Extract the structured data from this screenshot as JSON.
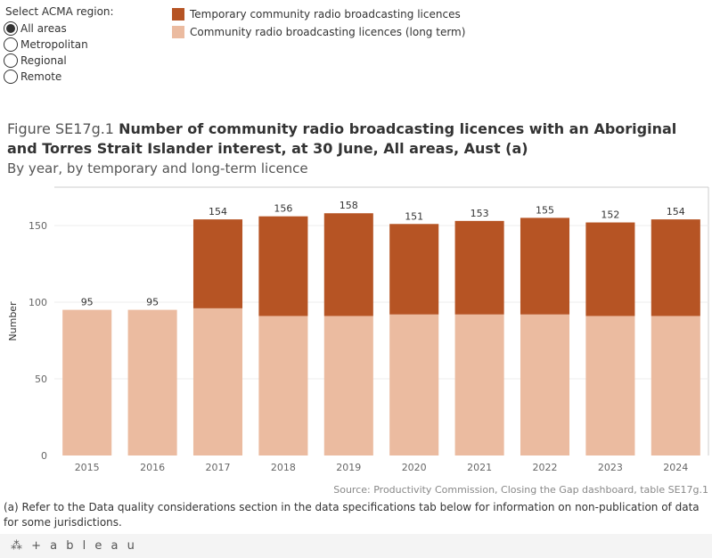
{
  "filter": {
    "title": "Select ACMA region:",
    "options": [
      {
        "label": "All areas",
        "selected": true
      },
      {
        "label": "Metropolitan",
        "selected": false
      },
      {
        "label": "Regional",
        "selected": false
      },
      {
        "label": "Remote",
        "selected": false
      }
    ]
  },
  "legend": {
    "items": [
      {
        "label": "Temporary community radio broadcasting licences",
        "color": "#b65424"
      },
      {
        "label": "Community radio broadcasting licences (long term)",
        "color": "#ebbba0"
      }
    ]
  },
  "figure": {
    "prefix": "Figure SE17g.1",
    "title": "Number of community radio broadcasting licences with an Aboriginal and Torres Strait Islander interest, at 30 June, All areas, Aust (a)",
    "subtitle": "By year, by temporary and long-term licence"
  },
  "chart_data": {
    "type": "bar",
    "stacked": true,
    "categories": [
      "2015",
      "2016",
      "2017",
      "2018",
      "2019",
      "2020",
      "2021",
      "2022",
      "2023",
      "2024"
    ],
    "series": [
      {
        "name": "Community radio broadcasting licences (long term)",
        "color": "#ebbba0",
        "values": [
          95,
          95,
          96,
          91,
          91,
          92,
          92,
          92,
          91,
          91
        ]
      },
      {
        "name": "Temporary community radio broadcasting licences",
        "color": "#b65424",
        "values": [
          0,
          0,
          58,
          65,
          67,
          59,
          61,
          63,
          61,
          63
        ]
      }
    ],
    "totals": [
      95,
      95,
      154,
      156,
      158,
      151,
      153,
      155,
      152,
      154
    ],
    "ylabel": "Number",
    "ylim": [
      0,
      175
    ],
    "yticks": [
      0,
      50,
      100,
      150
    ],
    "grid": true
  },
  "source": "Source: Productivity Commission, Closing the Gap dashboard, table SE17g.1",
  "note": "(a) Refer to the Data quality considerations section in the data specifications tab below for information on non-publication of data for some jurisdictions.",
  "footer": {
    "logo_text": "+ a b l e a u"
  }
}
